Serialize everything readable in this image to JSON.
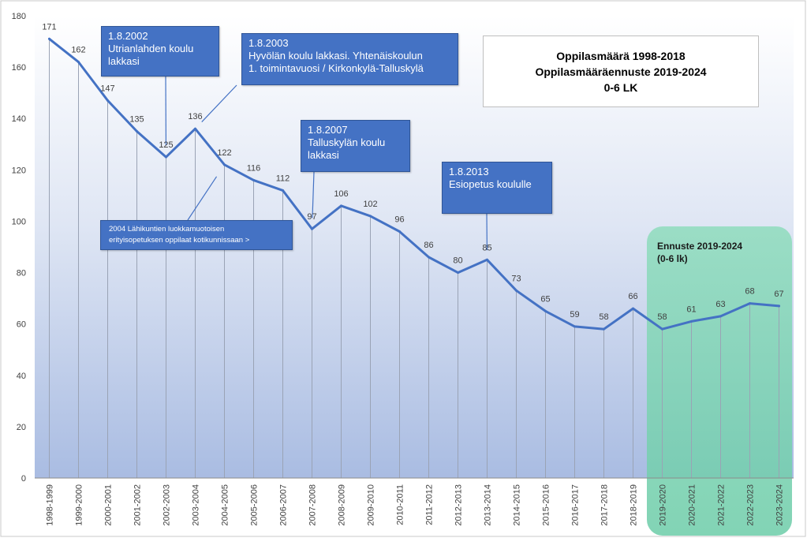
{
  "chart_data": {
    "type": "line",
    "title": [
      "Oppilasmäärä 1998-2018",
      "Oppilasmääräennuste 2019-2024",
      "0-6 LK"
    ],
    "categories": [
      "1998-1999",
      "1999-2000",
      "2000-2001",
      "2001-2002",
      "2002-2003",
      "2003-2004",
      "2004-2005",
      "2005-2006",
      "2006-2007",
      "2007-2008",
      "2008-2009",
      "2009-2010",
      "2010-2011",
      "2011-2012",
      "2012-2013",
      "2013-2014",
      "2014-2015",
      "2015-2016",
      "2016-2017",
      "2017-2018",
      "2018-2019",
      "2019-2020",
      "2020-2021",
      "2021-2022",
      "2022-2023",
      "2023-2024"
    ],
    "values": [
      171,
      162,
      147,
      135,
      125,
      136,
      122,
      116,
      112,
      97,
      106,
      102,
      96,
      86,
      80,
      85,
      73,
      65,
      59,
      58,
      66,
      58,
      61,
      63,
      68,
      67
    ],
    "ylim": [
      0,
      180
    ],
    "yticks": [
      0,
      20,
      40,
      60,
      80,
      100,
      120,
      140,
      160,
      180
    ],
    "grid": "vertical drop lines",
    "line_color": "#4472c4",
    "forecast_region": {
      "categories": [
        "2019-2020",
        "2020-2021",
        "2021-2022",
        "2022-2023",
        "2023-2024"
      ],
      "label": [
        "Ennuste 2019-2024",
        "(0-6 lk)"
      ],
      "color": "#7fd4b4"
    },
    "annotations": [
      {
        "lines": [
          "1.8.2002",
          "Utrianlahden koulu",
          "lakkasi"
        ],
        "target": "2002-2003"
      },
      {
        "lines": [
          "1.8.2003",
          "Hyvölän koulu lakkasi. Yhtenäiskoulun",
          "1. toimintavuosi / Kirkonkylä-Talluskylä"
        ],
        "target": "2003-2004"
      },
      {
        "lines": [
          "1.8.2007",
          "Talluskylän koulu",
          "lakkasi"
        ],
        "target": "2007-2008"
      },
      {
        "lines": [
          "1.8.2013",
          "Esiopetus koululle"
        ],
        "target": "2013-2014"
      },
      {
        "lines": [
          "2004 Lähikuntien luokkamuotoisen",
          "erityisopetuksen oppilaat kotikunnissaan >"
        ],
        "target": "2004-2005"
      }
    ]
  }
}
